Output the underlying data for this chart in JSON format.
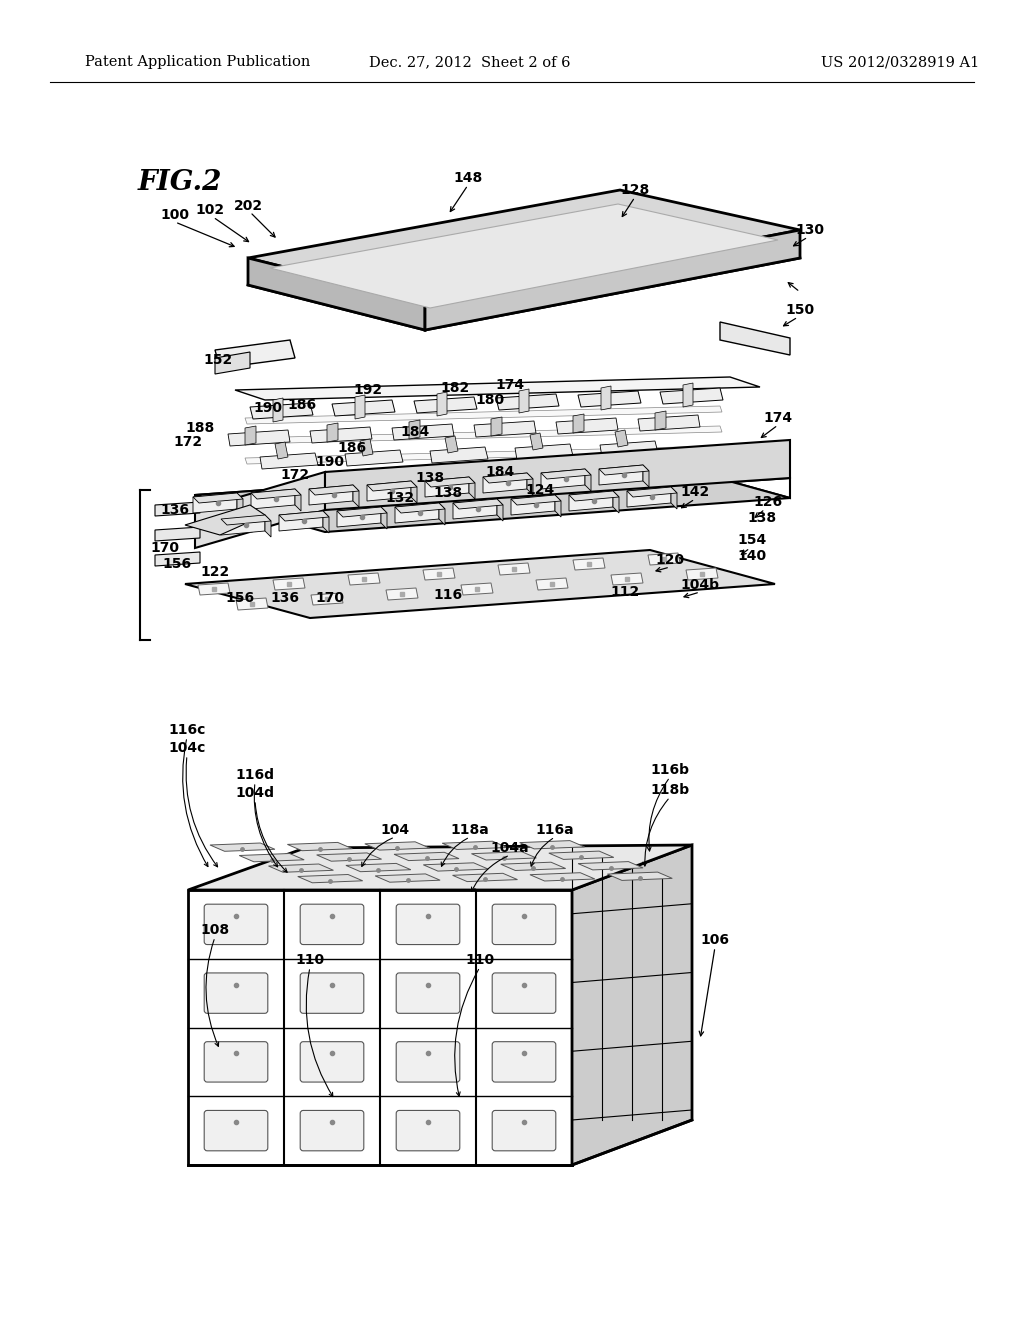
{
  "bg_color": "#ffffff",
  "header_left": "Patent Application Publication",
  "header_center": "Dec. 27, 2012  Sheet 2 of 6",
  "header_right": "US 2012/0328919 A1",
  "fig_label": "FIG.2",
  "header_fontsize": 10.5,
  "fig_label_fontsize": 20,
  "annotation_fontsize": 10,
  "line_color": "#000000",
  "gray_light": "#e0e0e0",
  "gray_mid": "#c0c0c0",
  "gray_dark": "#a0a0a0"
}
